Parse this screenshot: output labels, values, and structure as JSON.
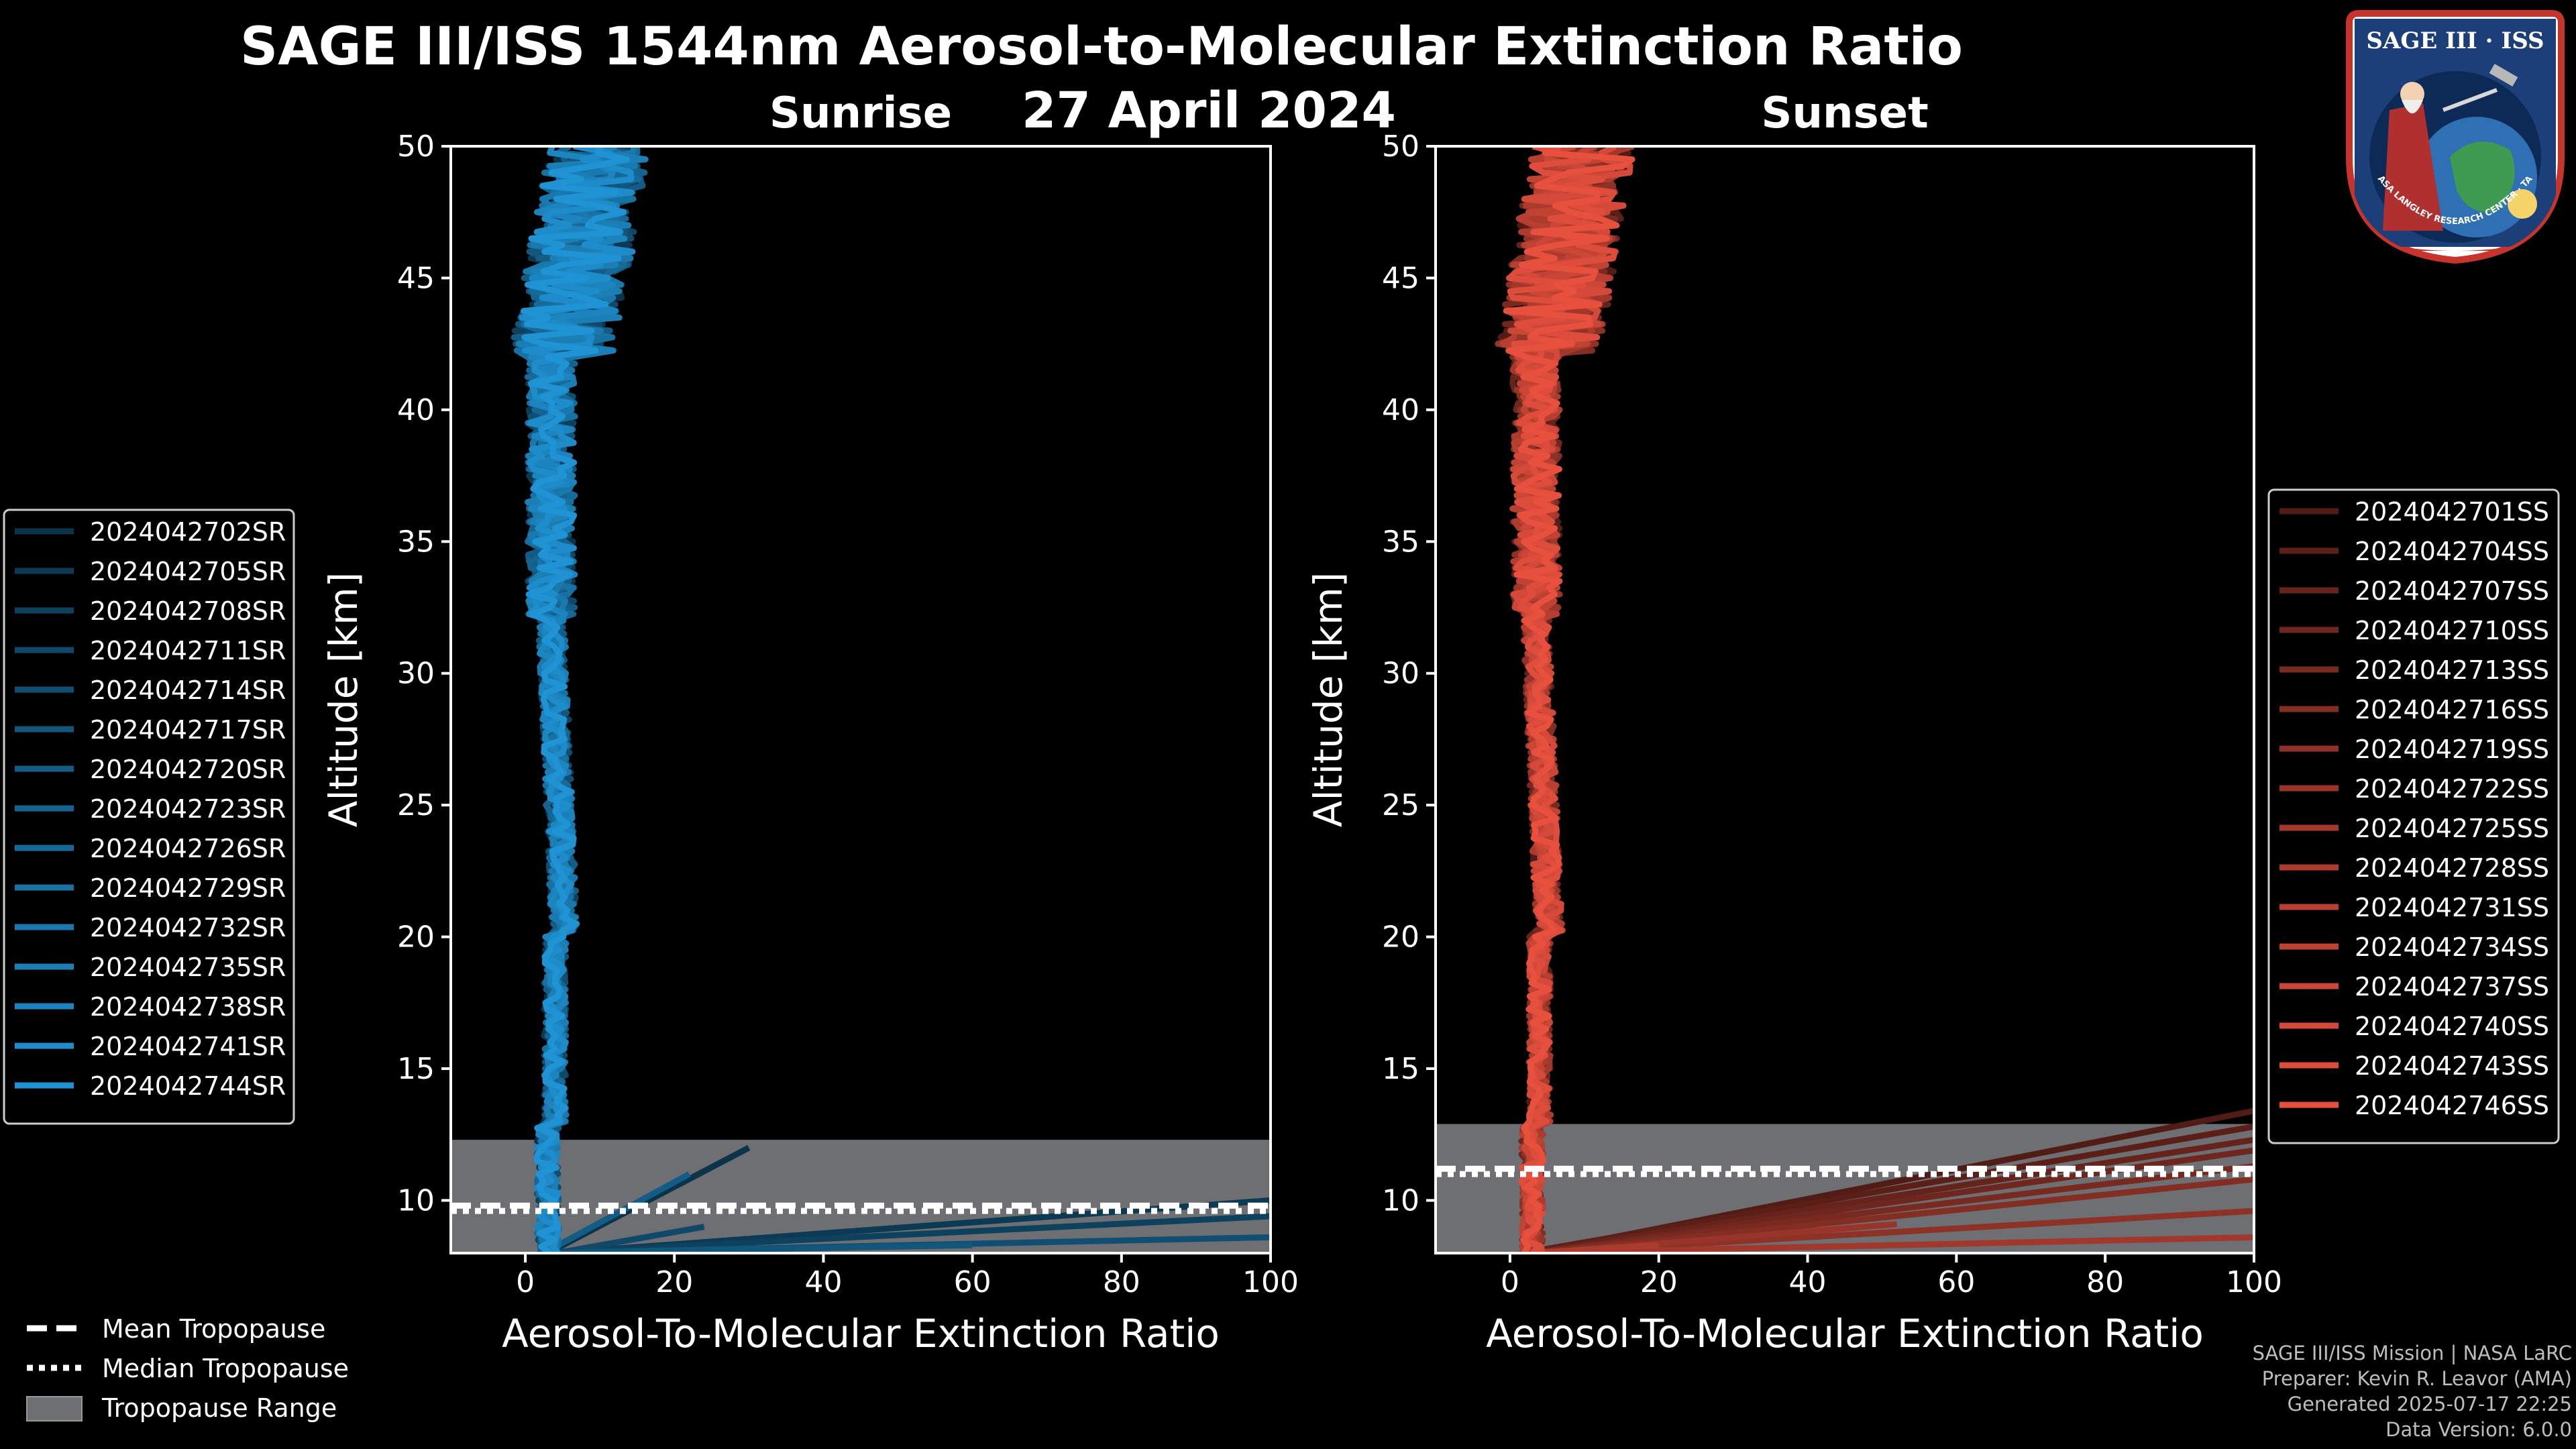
{
  "chart_data": {
    "type": "line",
    "title": "SAGE III/ISS 1544nm Aerosol-to-Molecular Extinction Ratio",
    "date_label": "27 April 2024",
    "xlabel": "Aerosol-To-Molecular Extinction Ratio",
    "ylabel": "Altitude [km]",
    "xlim": [
      -10,
      100
    ],
    "ylim": [
      8,
      50
    ],
    "x_ticks": [
      0,
      20,
      40,
      60,
      80,
      100
    ],
    "y_ticks": [
      10,
      15,
      20,
      25,
      30,
      35,
      40,
      45,
      50
    ],
    "panels": [
      {
        "name": "Sunrise",
        "color": "#1f93d4",
        "tropopause_range": [
          8,
          12.3
        ],
        "mean_tropopause": 9.8,
        "median_tropopause": 9.6,
        "legend": [
          "2024042702SR",
          "2024042705SR",
          "2024042708SR",
          "2024042711SR",
          "2024042714SR",
          "2024042717SR",
          "2024042720SR",
          "2024042723SR",
          "2024042726SR",
          "2024042729SR",
          "2024042732SR",
          "2024042735SR",
          "2024042738SR",
          "2024042741SR",
          "2024042744SR"
        ],
        "low_tails": [
          [
            12.0,
            30
          ],
          [
            10.0,
            100
          ],
          [
            9.4,
            100
          ],
          [
            9.0,
            24
          ],
          [
            8.6,
            100
          ],
          [
            8.3,
            60
          ],
          [
            11.0,
            22
          ]
        ]
      },
      {
        "name": "Sunset",
        "color": "#e8503e",
        "tropopause_range": [
          8,
          12.9
        ],
        "mean_tropopause": 11.2,
        "median_tropopause": 11.0,
        "legend": [
          "2024042701SS",
          "2024042704SS",
          "2024042707SS",
          "2024042710SS",
          "2024042713SS",
          "2024042716SS",
          "2024042719SS",
          "2024042722SS",
          "2024042725SS",
          "2024042728SS",
          "2024042731SS",
          "2024042734SS",
          "2024042737SS",
          "2024042740SS",
          "2024042743SS",
          "2024042746SS"
        ],
        "low_tails": [
          [
            13.4,
            100
          ],
          [
            12.8,
            100
          ],
          [
            12.3,
            100
          ],
          [
            11.9,
            100
          ],
          [
            11.3,
            100
          ],
          [
            10.8,
            100
          ],
          [
            9.6,
            100
          ],
          [
            9.1,
            52
          ],
          [
            8.6,
            100
          ],
          [
            8.3,
            20
          ]
        ]
      }
    ],
    "tropopause_legend": [
      "Mean Tropopause",
      "Median Tropopause",
      "Tropopause Range"
    ]
  },
  "logo": {
    "text": "SAGE III · ISS",
    "ring_text": "BALL · NASA LANGLEY RESEARCH CENTER · TAS-I · ESA"
  },
  "footer": {
    "line1": "SAGE III/ISS Mission | NASA LaRC",
    "line2": "Preparer: Kevin R. Leavor (AMA)",
    "line3": "Generated 2025-07-17 22:25",
    "line4": "Data Version: 6.0.0"
  },
  "colors": {
    "background": "#000000",
    "range_fill": "#6d6f72",
    "axes": "#ffffff"
  }
}
